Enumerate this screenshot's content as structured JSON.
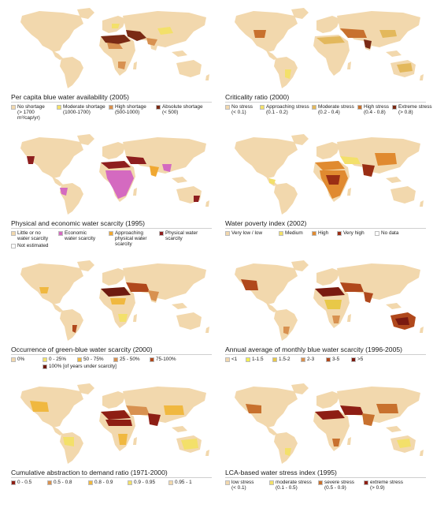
{
  "panels": [
    {
      "title": "Per capita blue water availability (2005)",
      "legend": [
        {
          "label": "No shortage",
          "sub": "(> 1700",
          "sub2": "m³/cap/yr)",
          "color": "#f2d8ad"
        },
        {
          "label": "Moderate shortage",
          "sub": "(1000-1700)",
          "sub2": "",
          "color": "#f3e06a"
        },
        {
          "label": "High shortage",
          "sub": "(500-1000)",
          "sub2": "",
          "color": "#d89150"
        },
        {
          "label": "Absolute shortage",
          "sub": "(< 500)",
          "sub2": "",
          "color": "#7a2a14"
        }
      ]
    },
    {
      "title": "Criticality ratio (2000)",
      "legend": [
        {
          "label": "No stress",
          "sub": "(< 0.1)",
          "sub2": "",
          "color": "#f2d8ad"
        },
        {
          "label": "Approaching stress",
          "sub": "(0.1 - 0.2)",
          "sub2": "",
          "color": "#f3e06a"
        },
        {
          "label": "Moderate stress",
          "sub": "(0.2 - 0.4)",
          "sub2": "",
          "color": "#e3b85c"
        },
        {
          "label": "High stress",
          "sub": "(0.4 - 0.8)",
          "sub2": "",
          "color": "#c8712e"
        },
        {
          "label": "Extreme stress",
          "sub": "(> 0.8)",
          "sub2": "",
          "color": "#7a2a14"
        }
      ]
    },
    {
      "title": "Physical and economic water scarcity (1995)",
      "legend": [
        {
          "label": "Little or no",
          "sub": "water scarcity",
          "sub2": "",
          "color": "#f2d8ad"
        },
        {
          "label": "Economic",
          "sub": "water scarcity",
          "sub2": "",
          "color": "#d46ac0"
        },
        {
          "label": "Approaching",
          "sub": "physical water",
          "sub2": "scarcity",
          "color": "#f0a832"
        },
        {
          "label": "Physical water",
          "sub": "scarcity",
          "sub2": "",
          "color": "#8e1e1e"
        },
        {
          "label": "Not estimated",
          "sub": "",
          "sub2": "",
          "color": "#ffffff"
        }
      ]
    },
    {
      "title": "Water poverty index (2002)",
      "legend": [
        {
          "label": "Very low / low",
          "sub": "",
          "sub2": "",
          "color": "#f2d8ad"
        },
        {
          "label": "Medium",
          "sub": "",
          "sub2": "",
          "color": "#f3e06a"
        },
        {
          "label": "High",
          "sub": "",
          "sub2": "",
          "color": "#e08a30"
        },
        {
          "label": "Very high",
          "sub": "",
          "sub2": "",
          "color": "#9a2e14"
        },
        {
          "label": "No data",
          "sub": "",
          "sub2": "",
          "color": "#ffffff"
        }
      ]
    },
    {
      "title": "Occurrence of green-blue water scarcity (2000)",
      "legend": [
        {
          "label": "0%",
          "sub": "",
          "sub2": "",
          "color": "#f2d8ad"
        },
        {
          "label": "0 - 25%",
          "sub": "",
          "sub2": "",
          "color": "#f3e06a"
        },
        {
          "label": "50 - 75%",
          "sub": "",
          "sub2": "",
          "color": "#f0b840"
        },
        {
          "label": "25 - 50%",
          "sub": "",
          "sub2": "",
          "color": "#d89150"
        },
        {
          "label": "75-100%",
          "sub": "",
          "sub2": "",
          "color": "#b0481c"
        },
        {
          "label": "100% [of years under scarcity]",
          "sub": "",
          "sub2": "",
          "color": "#6e1a10"
        }
      ]
    },
    {
      "title": "Annual average of monthly blue water scarcity (1996-2005)",
      "legend": [
        {
          "label": "<1",
          "sub": "",
          "sub2": "",
          "color": "#f2d8ad"
        },
        {
          "label": "1-1.5",
          "sub": "",
          "sub2": "",
          "color": "#f3ef50"
        },
        {
          "label": "1.5-2",
          "sub": "",
          "sub2": "",
          "color": "#e8c848"
        },
        {
          "label": "2-3",
          "sub": "",
          "sub2": "",
          "color": "#d89150"
        },
        {
          "label": "3-5",
          "sub": "",
          "sub2": "",
          "color": "#b0481c"
        },
        {
          "label": ">5",
          "sub": "",
          "sub2": "",
          "color": "#7a1a10"
        }
      ]
    },
    {
      "title": "Cumulative abstraction to demand ratio (1971-2000)",
      "legend": [
        {
          "label": "0 - 0.5",
          "sub": "",
          "sub2": "",
          "color": "#8e1e14"
        },
        {
          "label": "0.5 - 0.8",
          "sub": "",
          "sub2": "",
          "color": "#d89150"
        },
        {
          "label": "0.8 - 0.9",
          "sub": "",
          "sub2": "",
          "color": "#f0b840"
        },
        {
          "label": "0.9 - 0.95",
          "sub": "",
          "sub2": "",
          "color": "#f3e06a"
        },
        {
          "label": "0.95 - 1",
          "sub": "",
          "sub2": "",
          "color": "#f2d8ad"
        }
      ]
    },
    {
      "title": "LCA-based water stress index (1995)",
      "legend": [
        {
          "label": "low stress",
          "sub": "(< 0.1)",
          "sub2": "",
          "color": "#f2d8ad"
        },
        {
          "label": "moderate stress",
          "sub": "(0.1 - 0.5)",
          "sub2": "",
          "color": "#f3e06a"
        },
        {
          "label": "severe stress",
          "sub": "(0.5 - 0.9)",
          "sub2": "",
          "color": "#c8712e"
        },
        {
          "label": "extreme stress",
          "sub": "(> 0.9)",
          "sub2": "",
          "color": "#8e1e14"
        }
      ]
    }
  ]
}
